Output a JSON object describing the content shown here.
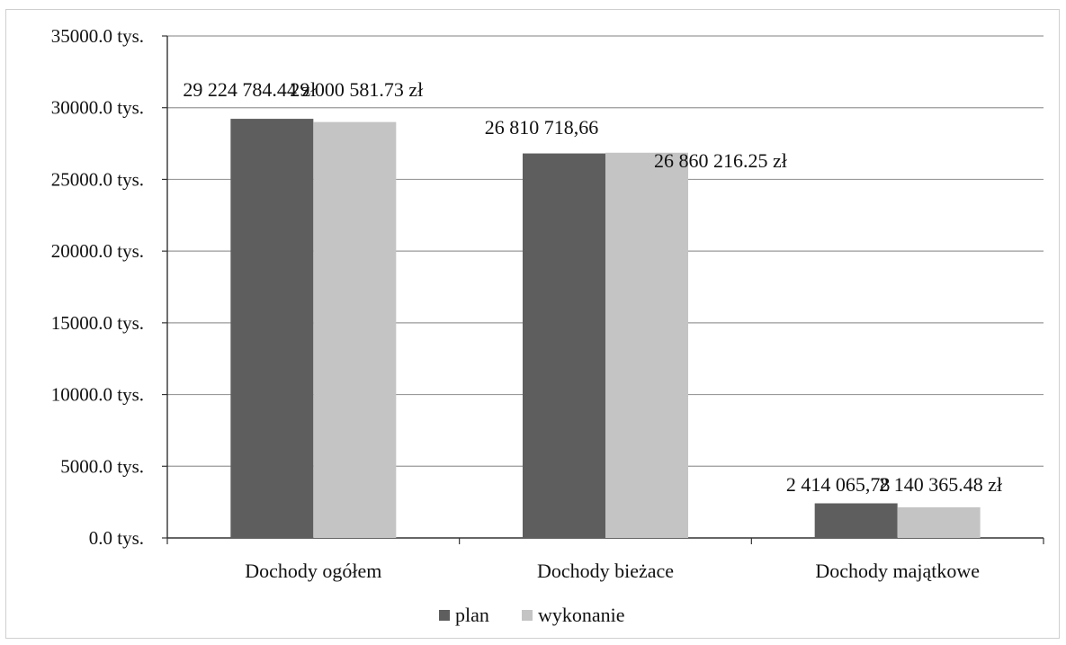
{
  "chart_data": {
    "type": "bar",
    "categories": [
      "Dochody ogółem",
      "Dochody bieżace",
      "Dochody majątkowe"
    ],
    "series": [
      {
        "name": "plan",
        "color": "#5e5e5e",
        "values": [
          29224784.44,
          26810718.66,
          2414065.78
        ],
        "labels": [
          "29 224 784.44 zł",
          "26 810 718,66",
          "2 414 065,78"
        ]
      },
      {
        "name": "wykonanie",
        "color": "#c4c4c4",
        "values": [
          29000581.73,
          26860216.25,
          2140365.48
        ],
        "labels": [
          "29 000 581.73 zł",
          "26 860 216.25 zł",
          "2 140 365.48 zł"
        ]
      }
    ],
    "yticks": [
      0,
      5000000,
      10000000,
      15000000,
      20000000,
      25000000,
      30000000,
      35000000
    ],
    "ytick_labels": [
      "0.0 tys.",
      "5000.0 tys.",
      "10000.0 tys.",
      "15000.0 tys.",
      "20000.0 tys.",
      "25000.0 tys.",
      "30000.0 tys.",
      "35000.0 tys."
    ],
    "ylim": [
      0,
      35000000
    ],
    "grid": true,
    "legend_position": "bottom"
  }
}
